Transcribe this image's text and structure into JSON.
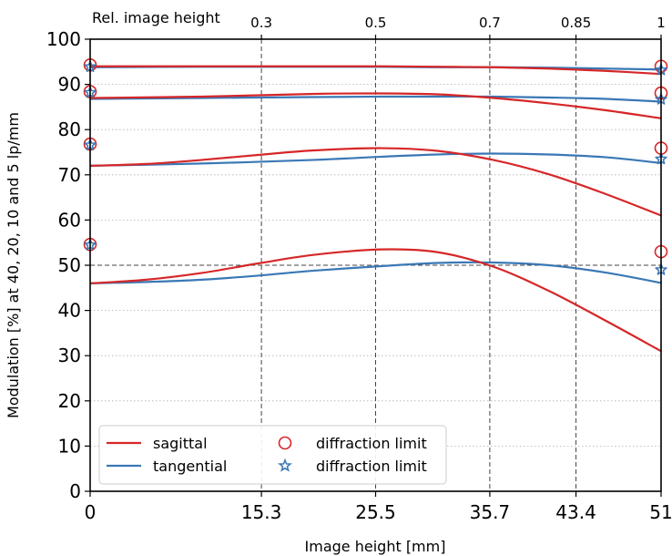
{
  "chart_data": {
    "type": "line",
    "xlabel": "Image height [mm]",
    "ylabel": "Modulation [%] at 40, 20, 10 and 5 lp/mm",
    "top_axis_label": "Rel. image height",
    "xlim": [
      0,
      51
    ],
    "ylim": [
      0,
      100
    ],
    "x_ticks": [
      0,
      15.3,
      25.5,
      35.7,
      43.4,
      51
    ],
    "x_tick_labels": [
      "0",
      "15.3",
      "25.5",
      "35.7",
      "43.4",
      "51"
    ],
    "y_ticks": [
      0,
      10,
      20,
      30,
      40,
      50,
      60,
      70,
      80,
      90,
      100
    ],
    "y_tick_labels": [
      "0",
      "10",
      "20",
      "30",
      "40",
      "50",
      "60",
      "70",
      "80",
      "90",
      "100"
    ],
    "top_ticks": [
      15.3,
      25.5,
      35.7,
      43.4,
      51
    ],
    "top_tick_labels": [
      "0.3",
      "0.5",
      "0.7",
      "0.85",
      "1"
    ],
    "reference_hline": 50,
    "grid": "dotted horizontal",
    "legend_placement": "bottom-left",
    "colors": {
      "sagittal": "#d62728",
      "tangential": "#3a78b5"
    },
    "legend": [
      {
        "label": "sagittal",
        "kind": "line",
        "color": "#d62728"
      },
      {
        "label": "tangential",
        "kind": "line",
        "color": "#3a78b5"
      },
      {
        "label": "diffraction limit",
        "kind": "circle",
        "color": "#d62728"
      },
      {
        "label": "diffraction limit",
        "kind": "star",
        "color": "#3a78b5"
      }
    ],
    "series": [
      {
        "group": "sagittal",
        "x": [
          0,
          10,
          20,
          26,
          31,
          36,
          41,
          46,
          51
        ],
        "y": [
          94.0,
          94.0,
          94.0,
          94.0,
          93.9,
          93.8,
          93.5,
          93.0,
          92.3
        ]
      },
      {
        "group": "tangential",
        "x": [
          0,
          10,
          20,
          26,
          31,
          36,
          41,
          46,
          51
        ],
        "y": [
          93.8,
          93.9,
          93.9,
          93.9,
          93.8,
          93.8,
          93.7,
          93.5,
          93.3
        ]
      },
      {
        "group": "sagittal",
        "x": [
          0,
          10,
          20,
          26,
          31,
          36,
          41,
          46,
          51
        ],
        "y": [
          87.0,
          87.3,
          87.9,
          88.0,
          87.8,
          87.0,
          85.8,
          84.3,
          82.5
        ]
      },
      {
        "group": "tangential",
        "x": [
          0,
          10,
          20,
          26,
          31,
          36,
          41,
          46,
          51
        ],
        "y": [
          86.8,
          87.0,
          87.2,
          87.3,
          87.3,
          87.3,
          87.1,
          86.8,
          86.2
        ]
      },
      {
        "group": "sagittal",
        "x": [
          0,
          5,
          10,
          15,
          20,
          26,
          31,
          36,
          41,
          46,
          51
        ],
        "y": [
          72.0,
          72.4,
          73.3,
          74.4,
          75.4,
          75.9,
          75.3,
          73.3,
          70.1,
          65.8,
          61.0
        ]
      },
      {
        "group": "tangential",
        "x": [
          0,
          10,
          20,
          26,
          31,
          36,
          41,
          46,
          51
        ],
        "y": [
          72.0,
          72.5,
          73.3,
          74.0,
          74.5,
          74.7,
          74.5,
          73.9,
          72.6
        ]
      },
      {
        "group": "sagittal",
        "x": [
          0,
          5,
          10,
          15,
          20,
          26,
          31,
          36,
          41,
          46,
          51
        ],
        "y": [
          46.0,
          46.8,
          48.3,
          50.4,
          52.3,
          53.5,
          52.9,
          49.7,
          44.3,
          37.8,
          31.0
        ]
      },
      {
        "group": "tangential",
        "x": [
          0,
          5,
          10,
          15,
          20,
          26,
          31,
          36,
          41,
          46,
          51
        ],
        "y": [
          46.0,
          46.3,
          46.8,
          47.7,
          48.8,
          49.8,
          50.5,
          50.6,
          50.0,
          48.4,
          46.1
        ]
      }
    ],
    "diffraction_limit_circles": {
      "x": [
        0,
        0,
        0,
        0,
        51,
        51,
        51,
        51
      ],
      "y": [
        94.3,
        88.4,
        76.8,
        54.6,
        94.0,
        88.1,
        75.9,
        53.0
      ]
    },
    "diffraction_limit_stars": {
      "x": [
        0,
        0,
        0,
        0,
        51,
        51,
        51,
        51
      ],
      "y": [
        93.9,
        88.2,
        76.6,
        54.5,
        93.2,
        86.7,
        73.5,
        49.0
      ]
    }
  }
}
